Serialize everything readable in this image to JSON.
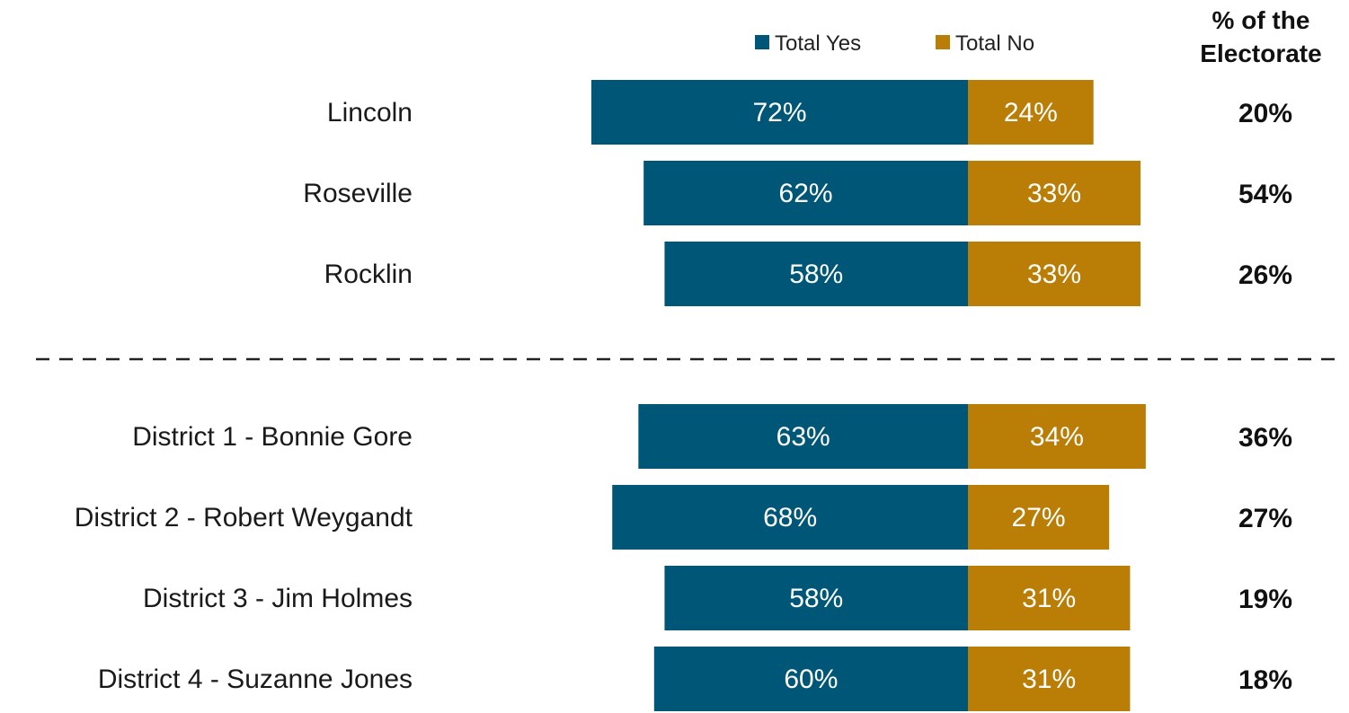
{
  "chart_data": {
    "type": "bar",
    "orientation": "horizontal-diverging",
    "categories": [
      "Lincoln",
      "Roseville",
      "Rocklin",
      "District 1 - Bonnie Gore",
      "District 2 - Robert Weygandt",
      "District 3 - Jim Holmes",
      "District 4 - Suzanne Jones"
    ],
    "series": [
      {
        "name": "Total Yes",
        "color": "#005677",
        "values": [
          72,
          62,
          58,
          63,
          68,
          58,
          60
        ]
      },
      {
        "name": "Total No",
        "color": "#BA7D06",
        "values": [
          24,
          33,
          33,
          34,
          27,
          31,
          31
        ]
      }
    ],
    "value_suffix": "%",
    "electorate": {
      "header_line1": "% of the",
      "header_line2": "Electorate",
      "values": [
        "20%",
        "54%",
        "26%",
        "36%",
        "27%",
        "19%",
        "18%"
      ]
    },
    "groups": [
      [
        0,
        1,
        2
      ],
      [
        3,
        4,
        5,
        6
      ]
    ],
    "legend_position": "top",
    "separator": "dashed"
  }
}
